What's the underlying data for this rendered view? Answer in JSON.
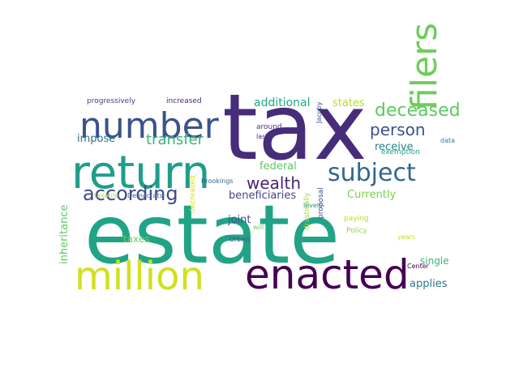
{
  "words": [
    {
      "text": "estate",
      "color": "#21a386",
      "rotate": 0
    },
    {
      "text": "tax",
      "color": "#472c7a",
      "rotate": 0
    },
    {
      "text": "return",
      "color": "#1f9e89",
      "rotate": 0
    },
    {
      "text": "enacted",
      "color": "#440154",
      "rotate": 0
    },
    {
      "text": "million",
      "color": "#d0e11c",
      "rotate": 0
    },
    {
      "text": "number",
      "color": "#3b528b",
      "rotate": 0
    },
    {
      "text": "filers",
      "color": "#6ece58",
      "rotate": 90
    },
    {
      "text": "subject",
      "color": "#31688e",
      "rotate": 0
    },
    {
      "text": "according",
      "color": "#3e4989",
      "rotate": 0
    },
    {
      "text": "deceased",
      "color": "#5ec962",
      "rotate": 0
    },
    {
      "text": "person",
      "color": "#3b528b",
      "rotate": 0
    },
    {
      "text": "transfer",
      "color": "#35b779",
      "rotate": 0
    },
    {
      "text": "wealth",
      "color": "#482475",
      "rotate": 0
    },
    {
      "text": "impose",
      "color": "#2c728e",
      "rotate": 0
    },
    {
      "text": "additional",
      "color": "#22a884",
      "rotate": 0
    },
    {
      "text": "states",
      "color": "#b5de2b",
      "rotate": 0
    },
    {
      "text": "receive",
      "color": "#26828e",
      "rotate": 0
    },
    {
      "text": "federal",
      "color": "#5ec962",
      "rotate": 0
    },
    {
      "text": "beneficiaries",
      "color": "#414487",
      "rotate": 0
    },
    {
      "text": "Currently",
      "color": "#7ad151",
      "rotate": 0
    },
    {
      "text": "inheritance",
      "color": "#5ec962",
      "rotate": 90
    },
    {
      "text": "joint",
      "color": "#3b528b",
      "rotate": 0
    },
    {
      "text": "taxes",
      "color": "#6ece58",
      "rotate": 0
    },
    {
      "text": "single",
      "color": "#35b779",
      "rotate": 0
    },
    {
      "text": "applies",
      "color": "#2a788e",
      "rotate": 0
    },
    {
      "text": "progressively",
      "color": "#414487",
      "rotate": 0
    },
    {
      "text": "increased",
      "color": "#482878",
      "rotate": 0
    },
    {
      "text": "around",
      "color": "#46337e",
      "rotate": 0
    },
    {
      "text": "last",
      "color": "#482575",
      "rotate": 0
    },
    {
      "text": "Jacoby",
      "color": "#3e4c8a",
      "rotate": 90
    },
    {
      "text": "exemption",
      "color": "#1fa188",
      "rotate": 0
    },
    {
      "text": "data",
      "color": "#25858e",
      "rotate": 0
    },
    {
      "text": "Brookings",
      "color": "#31688e",
      "rotate": 0
    },
    {
      "text": "levels",
      "color": "#20938c",
      "rotate": 0
    },
    {
      "text": "taxable",
      "color": "#addc30",
      "rotate": 0
    },
    {
      "text": "Democrats",
      "color": "#2c728e",
      "rotate": 0
    },
    {
      "text": "will",
      "color": "#6ece58",
      "rotate": 0
    },
    {
      "text": "Urban",
      "color": "#39568c",
      "rotate": 0
    },
    {
      "text": "decreased",
      "color": "#d8e219",
      "rotate": 90
    },
    {
      "text": "drastically",
      "color": "#a0da39",
      "rotate": 90
    },
    {
      "text": "proposal",
      "color": "#3b528b",
      "rotate": 90
    },
    {
      "text": "paying",
      "color": "#bddf26",
      "rotate": 0
    },
    {
      "text": "Policy",
      "color": "#90d743",
      "rotate": 0
    },
    {
      "text": "years",
      "color": "#c2df23",
      "rotate": 0
    },
    {
      "text": "Center",
      "color": "#440154",
      "rotate": 0
    }
  ]
}
